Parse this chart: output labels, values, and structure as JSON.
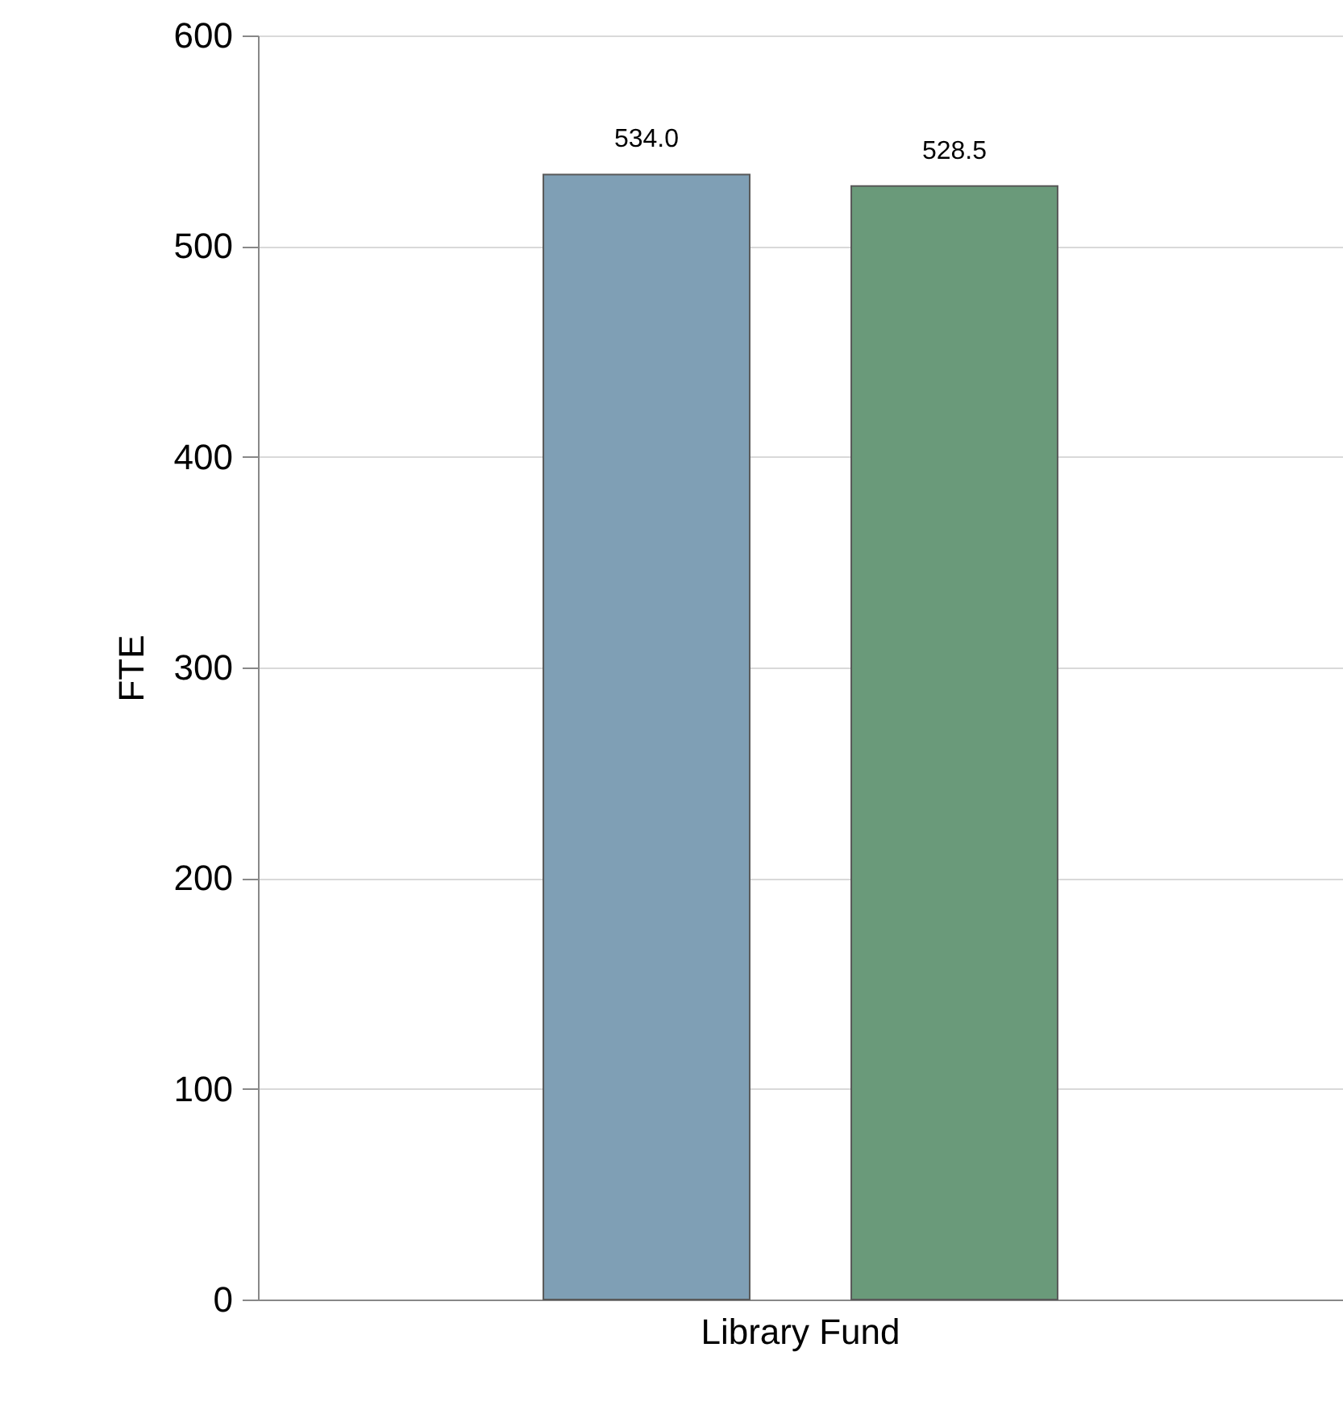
{
  "chart_data": {
    "type": "bar",
    "categories": [
      "Library Fund"
    ],
    "ylabel": "FTE",
    "ylim": [
      0,
      600
    ],
    "yticks": [
      0,
      100,
      200,
      300,
      400,
      500,
      600
    ],
    "grid": "y",
    "series": [
      {
        "color": "#7f9fb5",
        "values": [
          534
        ],
        "value_labels": [
          "534.0"
        ]
      },
      {
        "color": "#6a9a7a",
        "values": [
          528.5
        ],
        "value_labels": [
          "528.5"
        ]
      }
    ]
  }
}
